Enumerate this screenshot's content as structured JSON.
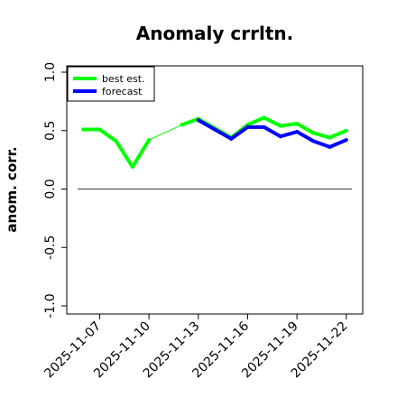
{
  "chart_data": {
    "type": "line",
    "title": "Anomaly crrltn.",
    "xlabel": "",
    "ylabel": "anom. corr.",
    "ylim": [
      -1.0,
      1.0
    ],
    "xlim": [
      "2025-11-05",
      "2025-11-23"
    ],
    "y_ticks": [
      "-1.0",
      "-0.5",
      "0.0",
      "0.5",
      "1.0"
    ],
    "x_ticks": [
      {
        "label": "2025-11-07",
        "date": "2025-11-07",
        "color": "#000000"
      },
      {
        "label": "2025-11-10",
        "date": "2025-11-10",
        "color": "#000000"
      },
      {
        "label": "2025-11-13",
        "date": "2025-11-13",
        "color": "#228B22"
      },
      {
        "label": "2025-11-16",
        "date": "2025-11-16",
        "color": "#000000"
      },
      {
        "label": "2025-11-19",
        "date": "2025-11-19",
        "color": "#000000"
      },
      {
        "label": "2025-11-22",
        "date": "2025-11-22",
        "color": "#000000"
      }
    ],
    "reference_line": 0.0,
    "legend_position": "top-left",
    "grid": false,
    "series": [
      {
        "name": "best est.",
        "color": "#00FF00",
        "points": [
          {
            "x": "2025-11-06",
            "y": 0.51
          },
          {
            "x": "2025-11-07",
            "y": 0.51
          },
          {
            "x": "2025-11-08",
            "y": 0.41
          },
          {
            "x": "2025-11-09",
            "y": 0.19
          },
          {
            "x": "2025-11-10",
            "y": 0.42
          },
          {
            "x": "2025-11-12",
            "y": 0.55
          },
          {
            "x": "2025-11-13",
            "y": 0.6
          },
          {
            "x": "2025-11-14",
            "y": 0.52
          },
          {
            "x": "2025-11-15",
            "y": 0.44
          },
          {
            "x": "2025-11-16",
            "y": 0.55
          },
          {
            "x": "2025-11-17",
            "y": 0.61
          },
          {
            "x": "2025-11-18",
            "y": 0.54
          },
          {
            "x": "2025-11-19",
            "y": 0.56
          },
          {
            "x": "2025-11-20",
            "y": 0.48
          },
          {
            "x": "2025-11-21",
            "y": 0.44
          },
          {
            "x": "2025-11-22",
            "y": 0.5
          }
        ]
      },
      {
        "name": "forecast",
        "color": "#0000FF",
        "points": [
          {
            "x": "2025-11-13",
            "y": 0.59
          },
          {
            "x": "2025-11-14",
            "y": 0.51
          },
          {
            "x": "2025-11-15",
            "y": 0.43
          },
          {
            "x": "2025-11-16",
            "y": 0.53
          },
          {
            "x": "2025-11-17",
            "y": 0.53
          },
          {
            "x": "2025-11-18",
            "y": 0.45
          },
          {
            "x": "2025-11-19",
            "y": 0.49
          },
          {
            "x": "2025-11-20",
            "y": 0.41
          },
          {
            "x": "2025-11-21",
            "y": 0.36
          },
          {
            "x": "2025-11-22",
            "y": 0.42
          }
        ]
      }
    ]
  }
}
